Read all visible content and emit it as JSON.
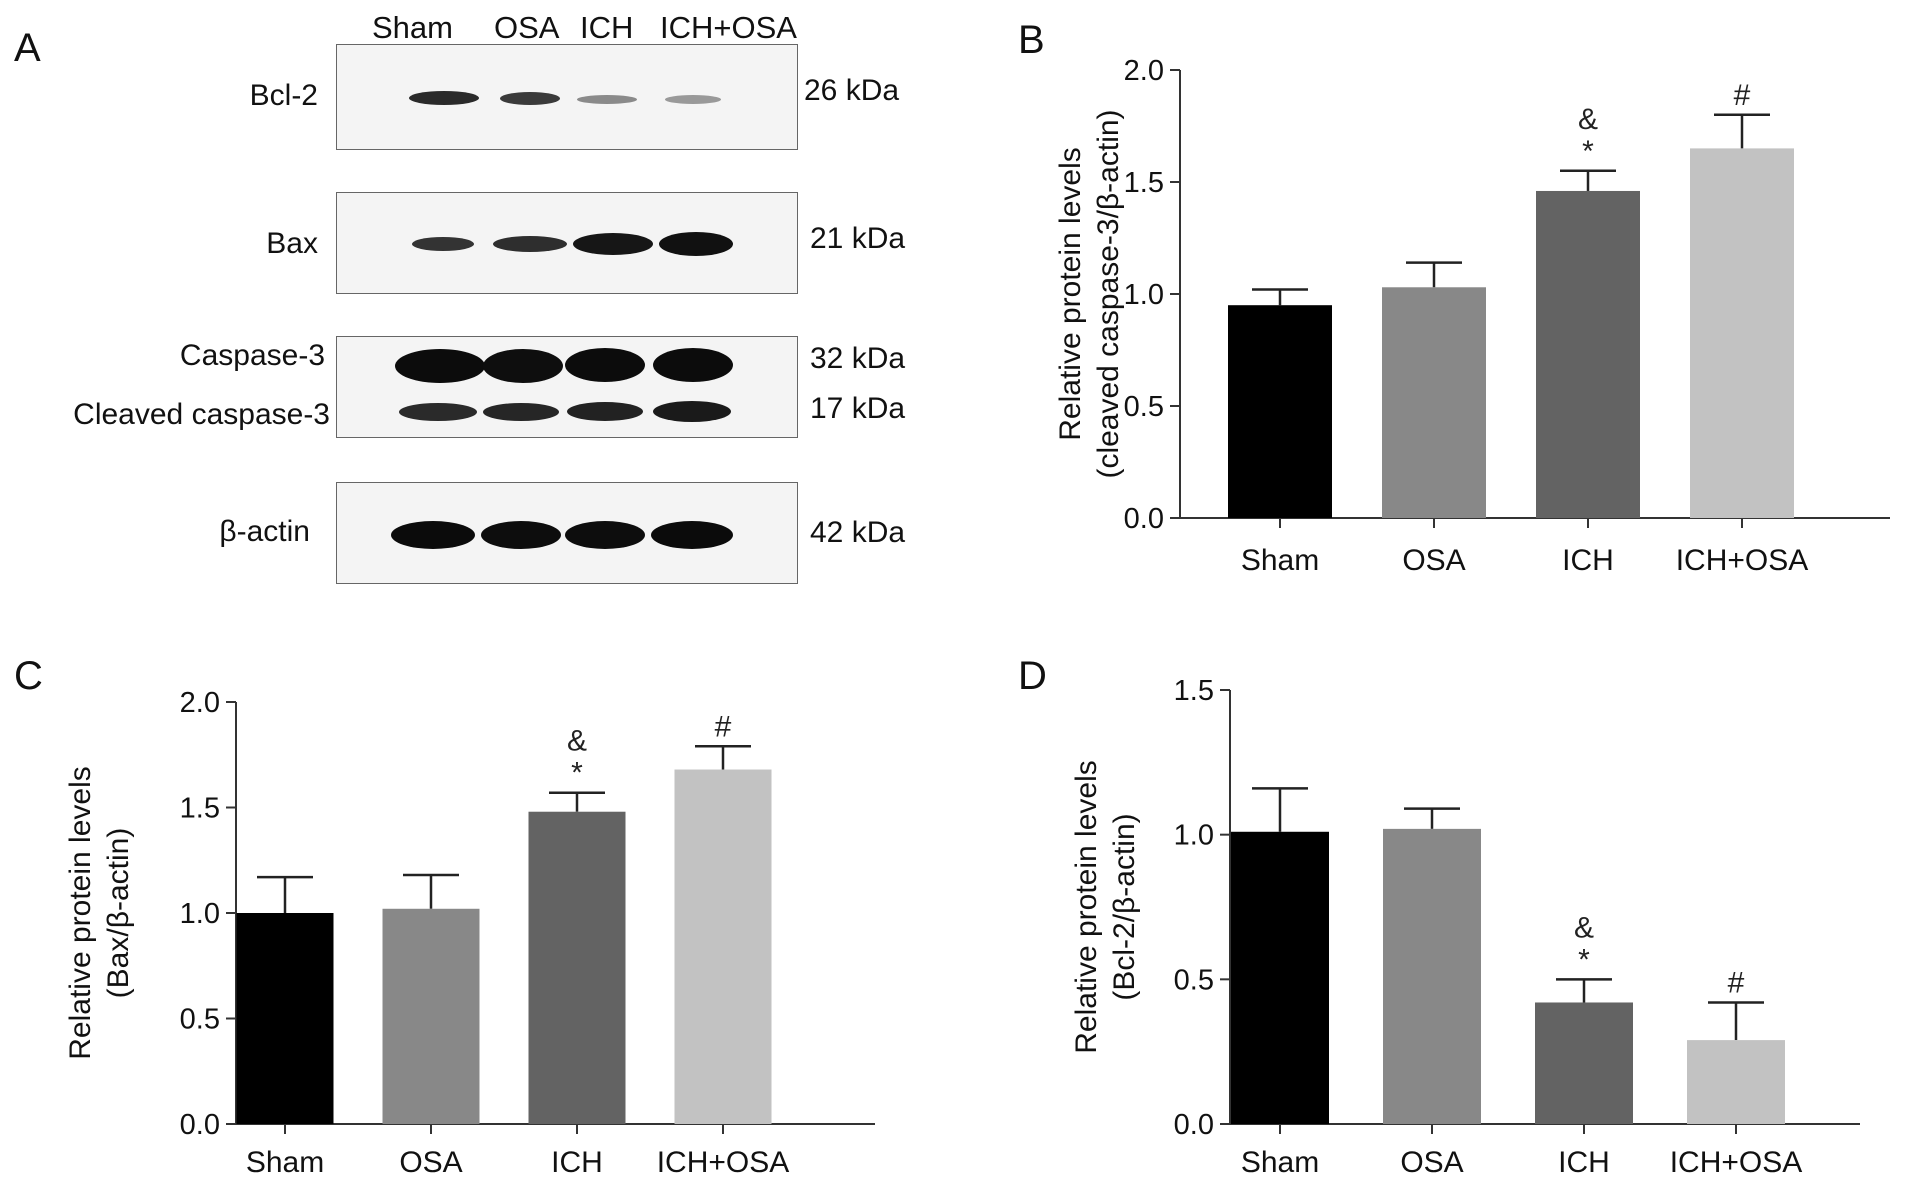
{
  "panels": {
    "A": "A",
    "B": "B",
    "C": "C",
    "D": "D"
  },
  "blot": {
    "lanes": [
      "Sham",
      "OSA",
      "ICH",
      "ICH+OSA"
    ],
    "rows": [
      {
        "label": "Bcl-2",
        "kda": "26 kDa"
      },
      {
        "label": "Bax",
        "kda": "21 kDa"
      },
      {
        "label": "Caspase-3",
        "kda": "32 kDa"
      },
      {
        "label": "Cleaved caspase-3",
        "kda": "17 kDa"
      },
      {
        "label": "β-actin",
        "kda": "42 kDa"
      }
    ]
  },
  "colors": {
    "Sham": "#000000",
    "OSA": "#888888",
    "ICH": "#636363",
    "ICH+OSA": "#c2c2c2",
    "error_bar": "#222222"
  },
  "chart_data": [
    {
      "panel": "B",
      "type": "bar",
      "ylabel": [
        "Relative protein levels",
        "(cleaved caspase-3/β-actin)"
      ],
      "categories": [
        "Sham",
        "OSA",
        "ICH",
        "ICH+OSA"
      ],
      "values": [
        0.95,
        1.03,
        1.46,
        1.65
      ],
      "errors": [
        0.07,
        0.11,
        0.09,
        0.15
      ],
      "annotations": [
        [],
        [],
        [
          "*",
          "&"
        ],
        [
          "#"
        ]
      ],
      "ylim": [
        0,
        2.0
      ],
      "yticks": [
        "0.0",
        "0.5",
        "1.0",
        "1.5",
        "2.0"
      ],
      "grid": false,
      "legend": "none"
    },
    {
      "panel": "C",
      "type": "bar",
      "ylabel": [
        "Relative protein levels",
        "(Bax/β-actin)"
      ],
      "categories": [
        "Sham",
        "OSA",
        "ICH",
        "ICH+OSA"
      ],
      "values": [
        1.0,
        1.02,
        1.48,
        1.68
      ],
      "errors": [
        0.17,
        0.16,
        0.09,
        0.11
      ],
      "annotations": [
        [],
        [],
        [
          "*",
          "&"
        ],
        [
          "#"
        ]
      ],
      "ylim": [
        0,
        2.0
      ],
      "yticks": [
        "0.0",
        "0.5",
        "1.0",
        "1.5",
        "2.0"
      ],
      "grid": false,
      "legend": "none"
    },
    {
      "panel": "D",
      "type": "bar",
      "ylabel": [
        "Relative protein levels",
        "(Bcl-2/β-actin)"
      ],
      "categories": [
        "Sham",
        "OSA",
        "ICH",
        "ICH+OSA"
      ],
      "values": [
        1.01,
        1.02,
        0.42,
        0.29
      ],
      "errors": [
        0.15,
        0.07,
        0.08,
        0.13
      ],
      "annotations": [
        [],
        [],
        [
          "*",
          "&"
        ],
        [
          "#"
        ]
      ],
      "ylim": [
        0,
        1.5
      ],
      "yticks": [
        "0.0",
        "0.5",
        "1.0",
        "1.5"
      ],
      "grid": false,
      "legend": "none"
    }
  ]
}
